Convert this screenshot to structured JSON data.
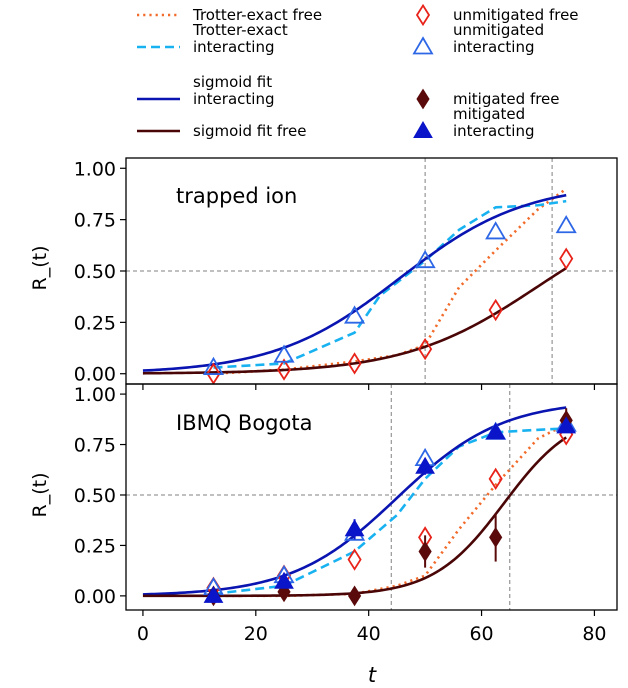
{
  "legend": {
    "items": [
      {
        "label": "Trotter-exact free",
        "kind": "line",
        "style": "dotted",
        "color": "#f26b2a"
      },
      {
        "label": "Trotter-exact\ninteracting",
        "kind": "line",
        "style": "dashed",
        "color": "#19b2f0"
      },
      {
        "label": "sigmoid fit\ninteracting",
        "kind": "line",
        "style": "solid",
        "color": "#0a14b0"
      },
      {
        "label": "sigmoid fit free",
        "kind": "line",
        "style": "solid",
        "color": "#4a0606"
      },
      {
        "label": "unmitigated free",
        "kind": "marker",
        "marker": "diamond-open",
        "color": "#e8231a"
      },
      {
        "label": "unmitigated\ninteracting",
        "kind": "marker",
        "marker": "triangle-open",
        "color": "#2e67e6"
      },
      {
        "label": "mitigated free",
        "kind": "marker",
        "marker": "diamond-filled",
        "color": "#5a0a0a"
      },
      {
        "label": "mitigated\ninteracting",
        "kind": "marker",
        "marker": "triangle-filled",
        "color": "#0a14c8"
      }
    ]
  },
  "axes": {
    "xlabel": "t",
    "ylabel": "R_(t)",
    "xlim": [
      -3,
      84
    ],
    "xticks": [
      0,
      20,
      40,
      60,
      80
    ],
    "yticks": [
      0.0,
      0.25,
      0.5,
      0.75,
      1.0
    ],
    "ytick_labels": [
      "0.00",
      "0.25",
      "0.50",
      "0.75",
      "1.00"
    ]
  },
  "chart_data": [
    {
      "type": "line",
      "title": "trapped ion",
      "ylim": [
        -0.05,
        1.05
      ],
      "hline": 0.5,
      "vlines": [
        50,
        72.5
      ],
      "series": [
        {
          "name": "Trotter-exact free",
          "x": [
            12.5,
            25,
            37.5,
            45,
            50,
            56,
            62.5,
            70,
            75
          ],
          "y": [
            0.0,
            0.02,
            0.06,
            0.09,
            0.14,
            0.42,
            0.6,
            0.8,
            0.9
          ]
        },
        {
          "name": "Trotter-exact interacting",
          "x": [
            12.5,
            25,
            37.5,
            42,
            50,
            56,
            62.5,
            70,
            75
          ],
          "y": [
            0.03,
            0.05,
            0.2,
            0.38,
            0.55,
            0.7,
            0.81,
            0.82,
            0.84
          ]
        },
        {
          "name": "sigmoid fit interacting",
          "fit": {
            "L": 0.93,
            "k": 0.09,
            "x0": 45.5
          }
        },
        {
          "name": "sigmoid fit free",
          "fit": {
            "L": 0.85,
            "k": 0.085,
            "x0": 70
          }
        },
        {
          "name": "unmitigated free",
          "x": [
            12.5,
            25,
            37.5,
            50,
            62.5,
            75
          ],
          "y": [
            0.0,
            0.02,
            0.05,
            0.12,
            0.31,
            0.56
          ]
        },
        {
          "name": "unmitigated interacting",
          "x": [
            12.5,
            25,
            37.5,
            50,
            62.5,
            75
          ],
          "y": [
            0.03,
            0.09,
            0.28,
            0.55,
            0.69,
            0.72
          ]
        }
      ]
    },
    {
      "type": "line",
      "title": "IBMQ Bogota",
      "ylim": [
        -0.07,
        1.05
      ],
      "hline": 0.5,
      "vlines": [
        44,
        65
      ],
      "series": [
        {
          "name": "Trotter-exact free",
          "x": [
            12.5,
            25,
            37.5,
            45,
            50,
            56,
            62.5,
            70,
            75
          ],
          "y": [
            0.0,
            0.0,
            0.01,
            0.05,
            0.1,
            0.33,
            0.55,
            0.78,
            0.85
          ]
        },
        {
          "name": "Trotter-exact interacting",
          "x": [
            12.5,
            25,
            37.5,
            45,
            50,
            56,
            62.5,
            68,
            75
          ],
          "y": [
            0.01,
            0.05,
            0.22,
            0.4,
            0.58,
            0.74,
            0.81,
            0.82,
            0.83
          ]
        },
        {
          "name": "sigmoid fit interacting",
          "fit": {
            "L": 0.97,
            "k": 0.108,
            "x0": 45
          }
        },
        {
          "name": "sigmoid fit free",
          "fit": {
            "L": 0.92,
            "k": 0.16,
            "x0": 64
          }
        },
        {
          "name": "unmitigated free",
          "x": [
            12.5,
            25,
            37.5,
            50,
            62.5,
            75
          ],
          "y": [
            0.04,
            0.1,
            0.18,
            0.29,
            0.58,
            0.8
          ]
        },
        {
          "name": "unmitigated interacting",
          "x": [
            12.5,
            25,
            37.5,
            50,
            62.5,
            75
          ],
          "y": [
            0.04,
            0.1,
            0.31,
            0.68,
            0.81,
            0.85
          ]
        },
        {
          "name": "mitigated free",
          "x": [
            12.5,
            25,
            37.5,
            50,
            62.5,
            75
          ],
          "y": [
            0.0,
            0.02,
            0.0,
            0.22,
            0.29,
            0.87
          ],
          "err": [
            0.03,
            0.03,
            0.03,
            0.08,
            0.12,
            0.06
          ]
        },
        {
          "name": "mitigated interacting",
          "x": [
            12.5,
            25,
            37.5,
            50,
            62.5,
            75
          ],
          "y": [
            0.0,
            0.07,
            0.33,
            0.64,
            0.81,
            0.84
          ],
          "err": [
            0.03,
            0.03,
            0.05,
            0.04,
            0.03,
            0.03
          ]
        }
      ]
    }
  ]
}
